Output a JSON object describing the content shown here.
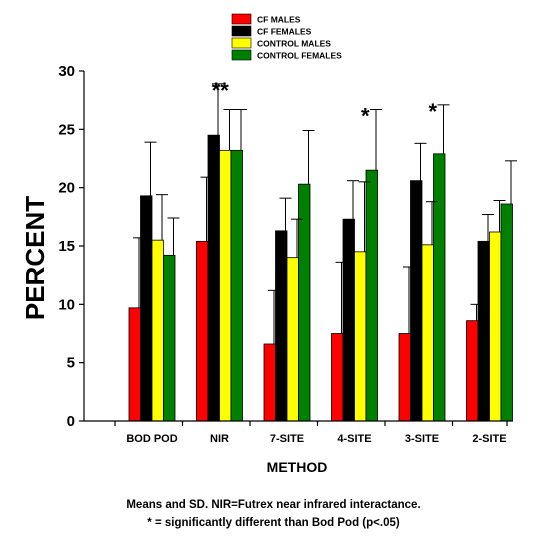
{
  "chart_data": {
    "type": "bar",
    "title": "",
    "xlabel": "METHOD",
    "ylabel": "PERCENT",
    "ylim": [
      0,
      30
    ],
    "yticks": [
      0,
      5,
      10,
      15,
      20,
      25,
      30
    ],
    "grid": false,
    "legend_position": "top-center",
    "categories": [
      "BOD POD",
      "NIR",
      "7-SITE",
      "4-SITE",
      "3-SITE",
      "2-SITE"
    ],
    "series": [
      {
        "name": "CF MALES",
        "color": "#ff0000",
        "values": [
          9.7,
          15.4,
          6.6,
          7.5,
          7.5,
          8.6
        ],
        "sd": [
          6.0,
          5.5,
          4.6,
          6.1,
          5.7,
          1.4
        ]
      },
      {
        "name": "CF FEMALES",
        "color": "#000000",
        "values": [
          19.3,
          24.5,
          16.3,
          17.3,
          20.6,
          15.4
        ],
        "sd": [
          4.6,
          4.4,
          2.8,
          3.3,
          3.2,
          2.3
        ]
      },
      {
        "name": "CONTROL MALES",
        "color": "#ffff00",
        "values": [
          15.5,
          23.2,
          14.0,
          14.5,
          15.1,
          16.2
        ],
        "sd": [
          3.9,
          3.5,
          3.3,
          6.0,
          3.7,
          2.7
        ]
      },
      {
        "name": "CONTROL FEMALES",
        "color": "#008000",
        "values": [
          14.2,
          23.2,
          20.3,
          21.5,
          22.9,
          18.6
        ],
        "sd": [
          3.2,
          3.5,
          4.6,
          5.2,
          4.2,
          3.7
        ]
      }
    ],
    "annotations": [
      {
        "category": "NIR",
        "text": "**"
      },
      {
        "category": "4-SITE",
        "text": "*"
      },
      {
        "category": "3-SITE",
        "text": "*"
      }
    ]
  },
  "caption": {
    "line1": "Means and SD.  NIR=Futrex near infrared interactance.",
    "line2": "* = significantly different than Bod Pod (p<.05)"
  }
}
